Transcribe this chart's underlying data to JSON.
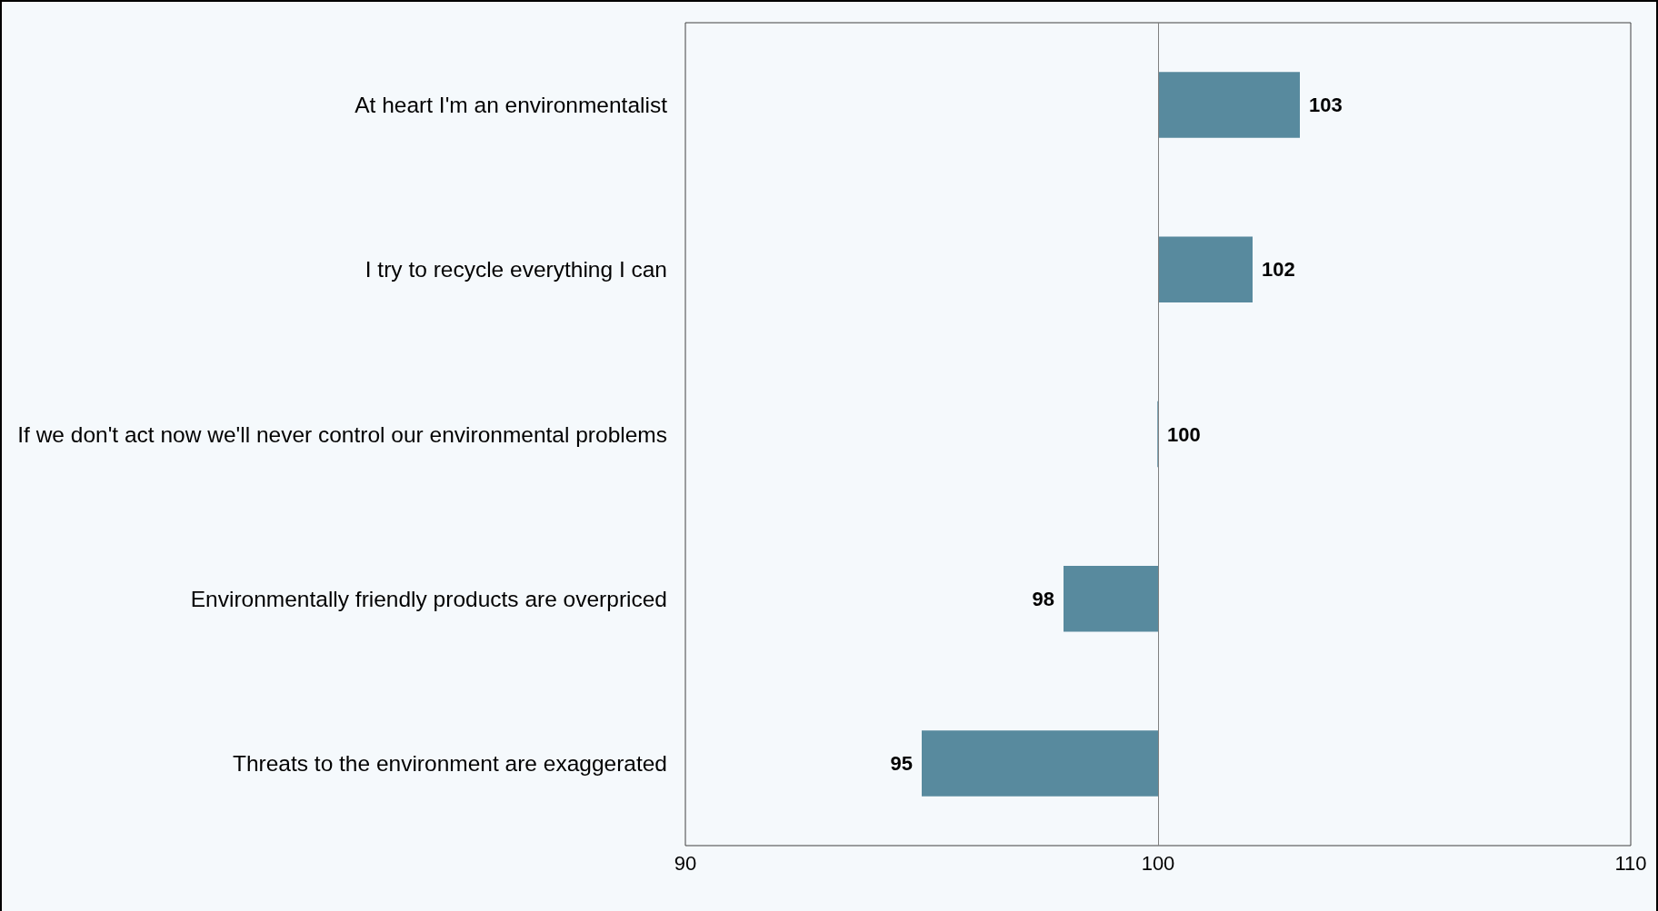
{
  "chart_data": {
    "type": "bar",
    "orientation": "horizontal",
    "categories": [
      "At heart I'm an environmentalist",
      "I try to recycle everything I can",
      "If we don't act now we'll never control our environmental problems",
      "Environmentally friendly products are overpriced",
      "Threats to the environment are exaggerated"
    ],
    "base": [
      100,
      100,
      100,
      100,
      100
    ],
    "values": [
      3,
      2,
      0,
      -2,
      -5
    ],
    "value_labels": [
      "103",
      "102",
      "100",
      "98",
      "95"
    ],
    "color": "#588a9e",
    "xlim": [
      90,
      110
    ],
    "xticks": [
      90,
      100,
      110
    ],
    "ref_lines": [
      {
        "axis": "x",
        "value": 100,
        "color": "#808080"
      }
    ],
    "grid": false
  }
}
